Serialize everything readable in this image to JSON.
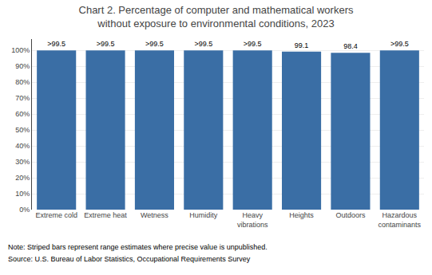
{
  "chart_data": {
    "type": "bar",
    "title": "Chart 2. Percentage of computer and mathematical workers\nwithout exposure to environmental conditions, 2023",
    "categories": [
      "Extreme cold",
      "Extreme heat",
      "Wetness",
      "Humidity",
      "Heavy\nvibrations",
      "Heights",
      "Outdoors",
      "Hazardous\ncontaminants"
    ],
    "values": [
      99.9,
      99.9,
      99.9,
      99.9,
      99.9,
      99.1,
      98.4,
      99.9
    ],
    "value_labels": [
      ">99.5",
      ">99.5",
      ">99.5",
      ">99.5",
      ">99.5",
      "99.1",
      "98.4",
      ">99.5"
    ],
    "data_labels": true,
    "color": "#3A6EA5",
    "ylim": [
      0,
      107
    ],
    "yticks": [
      {
        "value": 0,
        "label": "0%"
      },
      {
        "value": 10,
        "label": "10%"
      },
      {
        "value": 20,
        "label": "20%"
      },
      {
        "value": 30,
        "label": "30%"
      },
      {
        "value": 40,
        "label": "40%"
      },
      {
        "value": 50,
        "label": "50%"
      },
      {
        "value": 60,
        "label": "60%"
      },
      {
        "value": 70,
        "label": "70%"
      },
      {
        "value": 80,
        "label": "80%"
      },
      {
        "value": 90,
        "label": "90%"
      },
      {
        "value": 100,
        "label": "100%"
      }
    ],
    "grid": true,
    "annotations": [
      "Note: Striped bars represent range estimates where precise value is unpublished.",
      "Source: U.S. Bureau of Labor Statistics, Occupational Requirements Survey"
    ]
  }
}
